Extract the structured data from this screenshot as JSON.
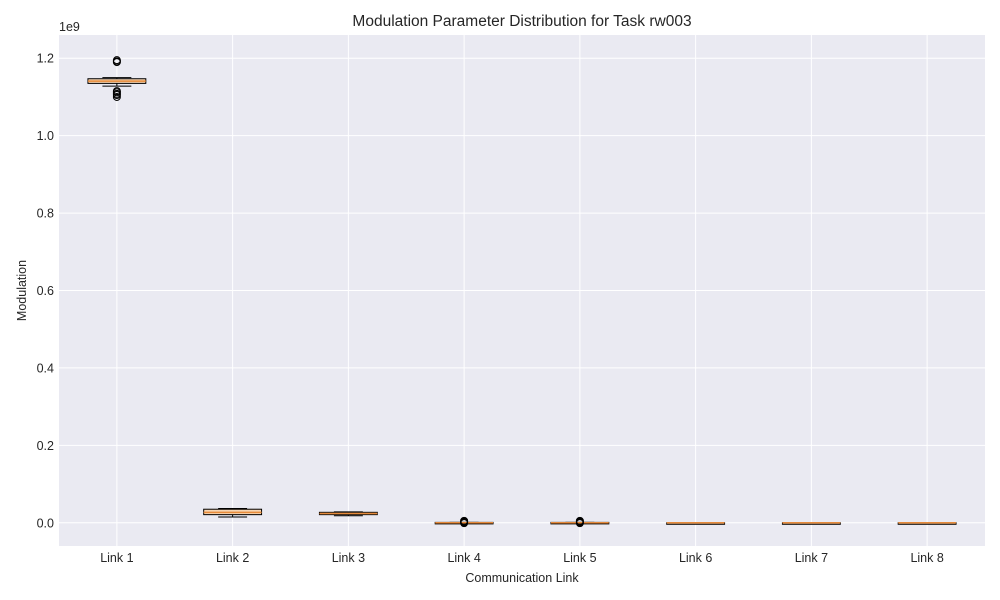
{
  "chart_data": {
    "type": "boxplot",
    "title": "Modulation Parameter Distribution for Task rw003",
    "xlabel": "Communication Link",
    "ylabel": "Modulation",
    "y_offset_text": "1e9",
    "y_multiplier": 1000000000,
    "ylim": [
      -0.06,
      1.26
    ],
    "yticks": [
      0.0,
      0.2,
      0.4,
      0.6,
      0.8,
      1.0,
      1.2
    ],
    "ytick_labels": [
      "0.0",
      "0.2",
      "0.4",
      "0.6",
      "0.8",
      "1.0",
      "1.2"
    ],
    "grid": true,
    "categories": [
      "Link 1",
      "Link 2",
      "Link 3",
      "Link 4",
      "Link 5",
      "Link 6",
      "Link 7",
      "Link 8"
    ],
    "boxes": [
      {
        "name": "Link 1",
        "whisker_low": 1.128,
        "q1": 1.135,
        "median": 1.141,
        "q3": 1.147,
        "whisker_high": 1.15,
        "fliers": [
          1.19,
          1.192,
          1.195,
          1.1,
          1.105,
          1.108,
          1.112,
          1.115
        ]
      },
      {
        "name": "Link 2",
        "whisker_low": 0.015,
        "q1": 0.021,
        "median": 0.027,
        "q3": 0.035,
        "whisker_high": 0.037,
        "fliers": []
      },
      {
        "name": "Link 3",
        "whisker_low": 0.018,
        "q1": 0.021,
        "median": 0.024,
        "q3": 0.027,
        "whisker_high": 0.028,
        "fliers": []
      },
      {
        "name": "Link 4",
        "whisker_low": 0.0,
        "q1": 0.0,
        "median": 0.0,
        "q3": 0.001,
        "whisker_high": 0.001,
        "fliers": [
          0.001,
          0.003,
          0.005,
          -0.001
        ]
      },
      {
        "name": "Link 5",
        "whisker_low": 0.0,
        "q1": 0.0,
        "median": 0.0,
        "q3": 0.001,
        "whisker_high": 0.001,
        "fliers": [
          0.001,
          0.003,
          0.005,
          -0.001
        ]
      },
      {
        "name": "Link 6",
        "whisker_low": 0.0,
        "q1": 0.0,
        "median": 0.0,
        "q3": 0.0,
        "whisker_high": 0.0,
        "fliers": []
      },
      {
        "name": "Link 7",
        "whisker_low": 0.0,
        "q1": 0.0,
        "median": 0.0,
        "q3": 0.0,
        "whisker_high": 0.0,
        "fliers": []
      },
      {
        "name": "Link 8",
        "whisker_low": 0.0,
        "q1": 0.0,
        "median": 0.0,
        "q3": 0.0,
        "whisker_high": 0.0,
        "fliers": []
      }
    ],
    "colors": {
      "plot_background": "#eaeaf2",
      "grid": "#ffffff",
      "box_fill": "#f7d4b0",
      "box_edge": "#000000",
      "median": "#e68a3a",
      "whisker": "#000000",
      "flier": "#000000"
    }
  }
}
